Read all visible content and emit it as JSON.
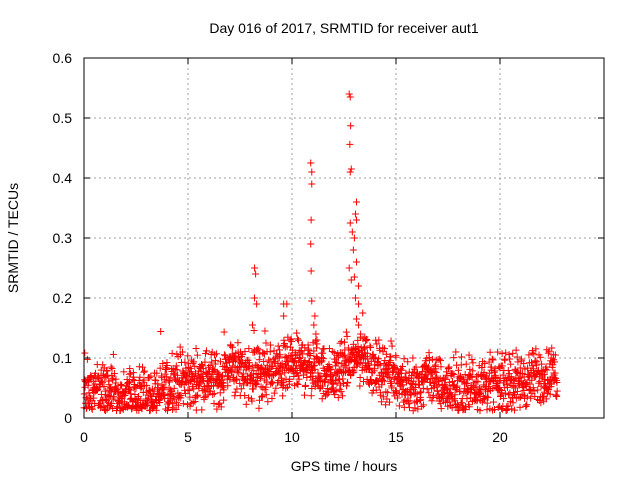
{
  "chart_data": {
    "type": "scatter",
    "title": "Day 016 of 2017, SRMTID for receiver aut1",
    "xlabel": "GPS time / hours",
    "ylabel": "SRMTID / TECUs",
    "xlim": [
      0,
      25
    ],
    "ylim": [
      0,
      0.6
    ],
    "xticks": [
      0,
      5,
      10,
      15,
      20
    ],
    "xtick_labels": [
      "0",
      "5",
      "10",
      "15",
      "20"
    ],
    "yticks": [
      0,
      0.1,
      0.2,
      0.3,
      0.4,
      0.5,
      0.6
    ],
    "ytick_labels": [
      "0",
      "0.1",
      "0.2",
      "0.3",
      "0.4",
      "0.5",
      "0.6"
    ],
    "grid": true,
    "marker": "+",
    "marker_color": "#ff0000",
    "series": [
      {
        "name": "SRMTID",
        "x_range": [
          0,
          22.75
        ],
        "baseline_profile": [
          [
            0,
            0.055
          ],
          [
            0.5,
            0.05
          ],
          [
            1,
            0.045
          ],
          [
            1.5,
            0.042
          ],
          [
            2,
            0.038
          ],
          [
            2.5,
            0.036
          ],
          [
            3,
            0.037
          ],
          [
            3.5,
            0.04
          ],
          [
            4,
            0.05
          ],
          [
            4.5,
            0.065
          ],
          [
            5,
            0.06
          ],
          [
            5.5,
            0.065
          ],
          [
            6,
            0.07
          ],
          [
            6.5,
            0.06
          ],
          [
            7,
            0.09
          ],
          [
            7.5,
            0.08
          ],
          [
            8,
            0.075
          ],
          [
            8.5,
            0.07
          ],
          [
            9,
            0.075
          ],
          [
            9.5,
            0.08
          ],
          [
            10,
            0.085
          ],
          [
            10.5,
            0.09
          ],
          [
            11,
            0.085
          ],
          [
            11.5,
            0.075
          ],
          [
            12,
            0.07
          ],
          [
            12.5,
            0.08
          ],
          [
            13,
            0.1
          ],
          [
            13.5,
            0.1
          ],
          [
            14,
            0.08
          ],
          [
            14.5,
            0.075
          ],
          [
            15,
            0.07
          ],
          [
            15.5,
            0.055
          ],
          [
            16,
            0.05
          ],
          [
            16.5,
            0.08
          ],
          [
            17,
            0.055
          ],
          [
            17.5,
            0.05
          ],
          [
            18,
            0.045
          ],
          [
            18.5,
            0.055
          ],
          [
            19,
            0.06
          ],
          [
            19.5,
            0.055
          ],
          [
            20,
            0.055
          ],
          [
            20.5,
            0.055
          ],
          [
            21,
            0.06
          ],
          [
            21.5,
            0.065
          ],
          [
            22,
            0.07
          ],
          [
            22.75,
            0.075
          ]
        ],
        "peaks": [
          {
            "x": 8.2,
            "y": 0.25
          },
          {
            "x": 8.25,
            "y": 0.24
          },
          {
            "x": 8.2,
            "y": 0.2
          },
          {
            "x": 8.3,
            "y": 0.19
          },
          {
            "x": 8.1,
            "y": 0.155
          },
          {
            "x": 8.7,
            "y": 0.145
          },
          {
            "x": 8.75,
            "y": 0.125
          },
          {
            "x": 9.6,
            "y": 0.19
          },
          {
            "x": 9.75,
            "y": 0.19
          },
          {
            "x": 9.6,
            "y": 0.17
          },
          {
            "x": 10.9,
            "y": 0.425
          },
          {
            "x": 10.95,
            "y": 0.41
          },
          {
            "x": 10.95,
            "y": 0.39
          },
          {
            "x": 10.92,
            "y": 0.33
          },
          {
            "x": 10.9,
            "y": 0.29
          },
          {
            "x": 10.92,
            "y": 0.245
          },
          {
            "x": 10.95,
            "y": 0.195
          },
          {
            "x": 11.1,
            "y": 0.17
          },
          {
            "x": 11.05,
            "y": 0.155
          },
          {
            "x": 11.15,
            "y": 0.14
          },
          {
            "x": 11.2,
            "y": 0.13
          },
          {
            "x": 12.75,
            "y": 0.54
          },
          {
            "x": 12.8,
            "y": 0.535
          },
          {
            "x": 12.82,
            "y": 0.487
          },
          {
            "x": 12.78,
            "y": 0.456
          },
          {
            "x": 12.85,
            "y": 0.415
          },
          {
            "x": 12.8,
            "y": 0.41
          },
          {
            "x": 13.1,
            "y": 0.36
          },
          {
            "x": 13.05,
            "y": 0.34
          },
          {
            "x": 13.1,
            "y": 0.33
          },
          {
            "x": 12.8,
            "y": 0.325
          },
          {
            "x": 12.9,
            "y": 0.31
          },
          {
            "x": 13.0,
            "y": 0.3
          },
          {
            "x": 12.95,
            "y": 0.28
          },
          {
            "x": 13.1,
            "y": 0.26
          },
          {
            "x": 12.75,
            "y": 0.25
          },
          {
            "x": 13.0,
            "y": 0.235
          },
          {
            "x": 12.85,
            "y": 0.23
          },
          {
            "x": 13.2,
            "y": 0.22
          },
          {
            "x": 13.05,
            "y": 0.2
          },
          {
            "x": 13.2,
            "y": 0.19
          },
          {
            "x": 13.4,
            "y": 0.175
          },
          {
            "x": 13.1,
            "y": 0.165
          },
          {
            "x": 13.2,
            "y": 0.155
          },
          {
            "x": 13.3,
            "y": 0.14
          },
          {
            "x": 13.5,
            "y": 0.135
          },
          {
            "x": 13.6,
            "y": 0.13
          }
        ]
      }
    ]
  }
}
